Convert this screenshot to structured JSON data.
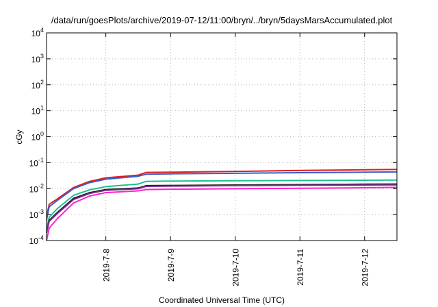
{
  "chart_data": {
    "type": "line",
    "title": "/data/run/goesPlots/archive/2019-07-12/11:00/bryn/../bryn/5daysMarsAccumulated.plot",
    "xlabel": "Coordinated Universal Time (UTC)",
    "ylabel": "cGy",
    "yscale": "log",
    "grid": true,
    "xlim": [
      "2019-07-07T02:00",
      "2019-07-12T12:00"
    ],
    "ylim": [
      0.0001,
      10000
    ],
    "yticks": [
      {
        "value": 0.0001,
        "base": "10",
        "exp": "-4"
      },
      {
        "value": 0.001,
        "base": "10",
        "exp": "-3"
      },
      {
        "value": 0.01,
        "base": "10",
        "exp": "-2"
      },
      {
        "value": 0.1,
        "base": "10",
        "exp": "-1"
      },
      {
        "value": 1,
        "base": "10",
        "exp": "0"
      },
      {
        "value": 10,
        "base": "10",
        "exp": "1"
      },
      {
        "value": 100,
        "base": "10",
        "exp": "2"
      },
      {
        "value": 1000,
        "base": "10",
        "exp": "3"
      },
      {
        "value": 10000,
        "base": "10",
        "exp": "4"
      }
    ],
    "xticks": [
      {
        "value": "2019-07-08T00:00",
        "label": "2019-7-8"
      },
      {
        "value": "2019-07-09T00:00",
        "label": "2019-7-9"
      },
      {
        "value": "2019-07-10T00:00",
        "label": "2019-7-10"
      },
      {
        "value": "2019-07-11T00:00",
        "label": "2019-7-11"
      },
      {
        "value": "2019-07-12T00:00",
        "label": "2019-7-12"
      }
    ],
    "series": [
      {
        "color": "#e31a1c",
        "points": [
          [
            "2019-07-07T02:00",
            0.0008
          ],
          [
            "2019-07-07T03:00",
            0.0025
          ],
          [
            "2019-07-07T06:00",
            0.004
          ],
          [
            "2019-07-07T12:00",
            0.011
          ],
          [
            "2019-07-07T18:00",
            0.019
          ],
          [
            "2019-07-08T00:00",
            0.026
          ],
          [
            "2019-07-08T12:00",
            0.033
          ],
          [
            "2019-07-08T15:00",
            0.042
          ],
          [
            "2019-07-09T00:00",
            0.043
          ],
          [
            "2019-07-10T00:00",
            0.046
          ],
          [
            "2019-07-11T00:00",
            0.05
          ],
          [
            "2019-07-12T00:00",
            0.053
          ],
          [
            "2019-07-12T12:00",
            0.055
          ]
        ]
      },
      {
        "color": "#3a5fcd",
        "points": [
          [
            "2019-07-07T02:00",
            0.0006
          ],
          [
            "2019-07-07T03:00",
            0.002
          ],
          [
            "2019-07-07T06:00",
            0.0035
          ],
          [
            "2019-07-07T12:00",
            0.01
          ],
          [
            "2019-07-07T18:00",
            0.017
          ],
          [
            "2019-07-08T00:00",
            0.023
          ],
          [
            "2019-07-08T12:00",
            0.03
          ],
          [
            "2019-07-08T15:00",
            0.036
          ],
          [
            "2019-07-09T00:00",
            0.037
          ],
          [
            "2019-07-10T00:00",
            0.039
          ],
          [
            "2019-07-11T00:00",
            0.041
          ],
          [
            "2019-07-12T00:00",
            0.043
          ],
          [
            "2019-07-12T12:00",
            0.044
          ]
        ]
      },
      {
        "color": "#1fbf8f",
        "points": [
          [
            "2019-07-07T02:00",
            0.0003
          ],
          [
            "2019-07-07T03:00",
            0.0008
          ],
          [
            "2019-07-07T06:00",
            0.0017
          ],
          [
            "2019-07-07T12:00",
            0.0055
          ],
          [
            "2019-07-07T18:00",
            0.009
          ],
          [
            "2019-07-08T00:00",
            0.012
          ],
          [
            "2019-07-08T12:00",
            0.015
          ],
          [
            "2019-07-08T15:00",
            0.019
          ],
          [
            "2019-07-09T00:00",
            0.0195
          ],
          [
            "2019-07-10T00:00",
            0.02
          ],
          [
            "2019-07-11T00:00",
            0.0205
          ],
          [
            "2019-07-12T00:00",
            0.021
          ],
          [
            "2019-07-12T12:00",
            0.0215
          ]
        ]
      },
      {
        "color": "#1a1a1a",
        "points": [
          [
            "2019-07-07T02:00",
            0.0002
          ],
          [
            "2019-07-07T03:00",
            0.0006
          ],
          [
            "2019-07-07T06:00",
            0.0012
          ],
          [
            "2019-07-07T12:00",
            0.0042
          ],
          [
            "2019-07-07T18:00",
            0.007
          ],
          [
            "2019-07-08T00:00",
            0.0092
          ],
          [
            "2019-07-08T12:00",
            0.0105
          ],
          [
            "2019-07-08T15:00",
            0.013
          ],
          [
            "2019-07-09T00:00",
            0.0133
          ],
          [
            "2019-07-10T00:00",
            0.0138
          ],
          [
            "2019-07-11T00:00",
            0.0143
          ],
          [
            "2019-07-12T00:00",
            0.0148
          ],
          [
            "2019-07-12T12:00",
            0.015
          ]
        ]
      },
      {
        "color": "#7b2d8e",
        "points": [
          [
            "2019-07-07T02:00",
            0.0002
          ],
          [
            "2019-07-07T03:00",
            0.00055
          ],
          [
            "2019-07-07T06:00",
            0.0011
          ],
          [
            "2019-07-07T12:00",
            0.0038
          ],
          [
            "2019-07-07T18:00",
            0.0065
          ],
          [
            "2019-07-08T00:00",
            0.0086
          ],
          [
            "2019-07-08T12:00",
            0.0099
          ],
          [
            "2019-07-08T15:00",
            0.0122
          ],
          [
            "2019-07-09T00:00",
            0.0125
          ],
          [
            "2019-07-10T00:00",
            0.013
          ],
          [
            "2019-07-11T00:00",
            0.0134
          ],
          [
            "2019-07-12T00:00",
            0.0138
          ],
          [
            "2019-07-12T12:00",
            0.014
          ]
        ]
      },
      {
        "color": "#ff1fd0",
        "points": [
          [
            "2019-07-07T02:00",
            0.0001
          ],
          [
            "2019-07-07T03:00",
            0.0003
          ],
          [
            "2019-07-07T06:00",
            0.0007
          ],
          [
            "2019-07-07T12:00",
            0.0028
          ],
          [
            "2019-07-07T18:00",
            0.0052
          ],
          [
            "2019-07-08T00:00",
            0.007
          ],
          [
            "2019-07-08T12:00",
            0.0082
          ],
          [
            "2019-07-08T15:00",
            0.0092
          ],
          [
            "2019-07-09T00:00",
            0.0095
          ],
          [
            "2019-07-10T00:00",
            0.0099
          ],
          [
            "2019-07-11T00:00",
            0.0103
          ],
          [
            "2019-07-12T00:00",
            0.0108
          ],
          [
            "2019-07-12T12:00",
            0.0112
          ]
        ]
      }
    ]
  }
}
